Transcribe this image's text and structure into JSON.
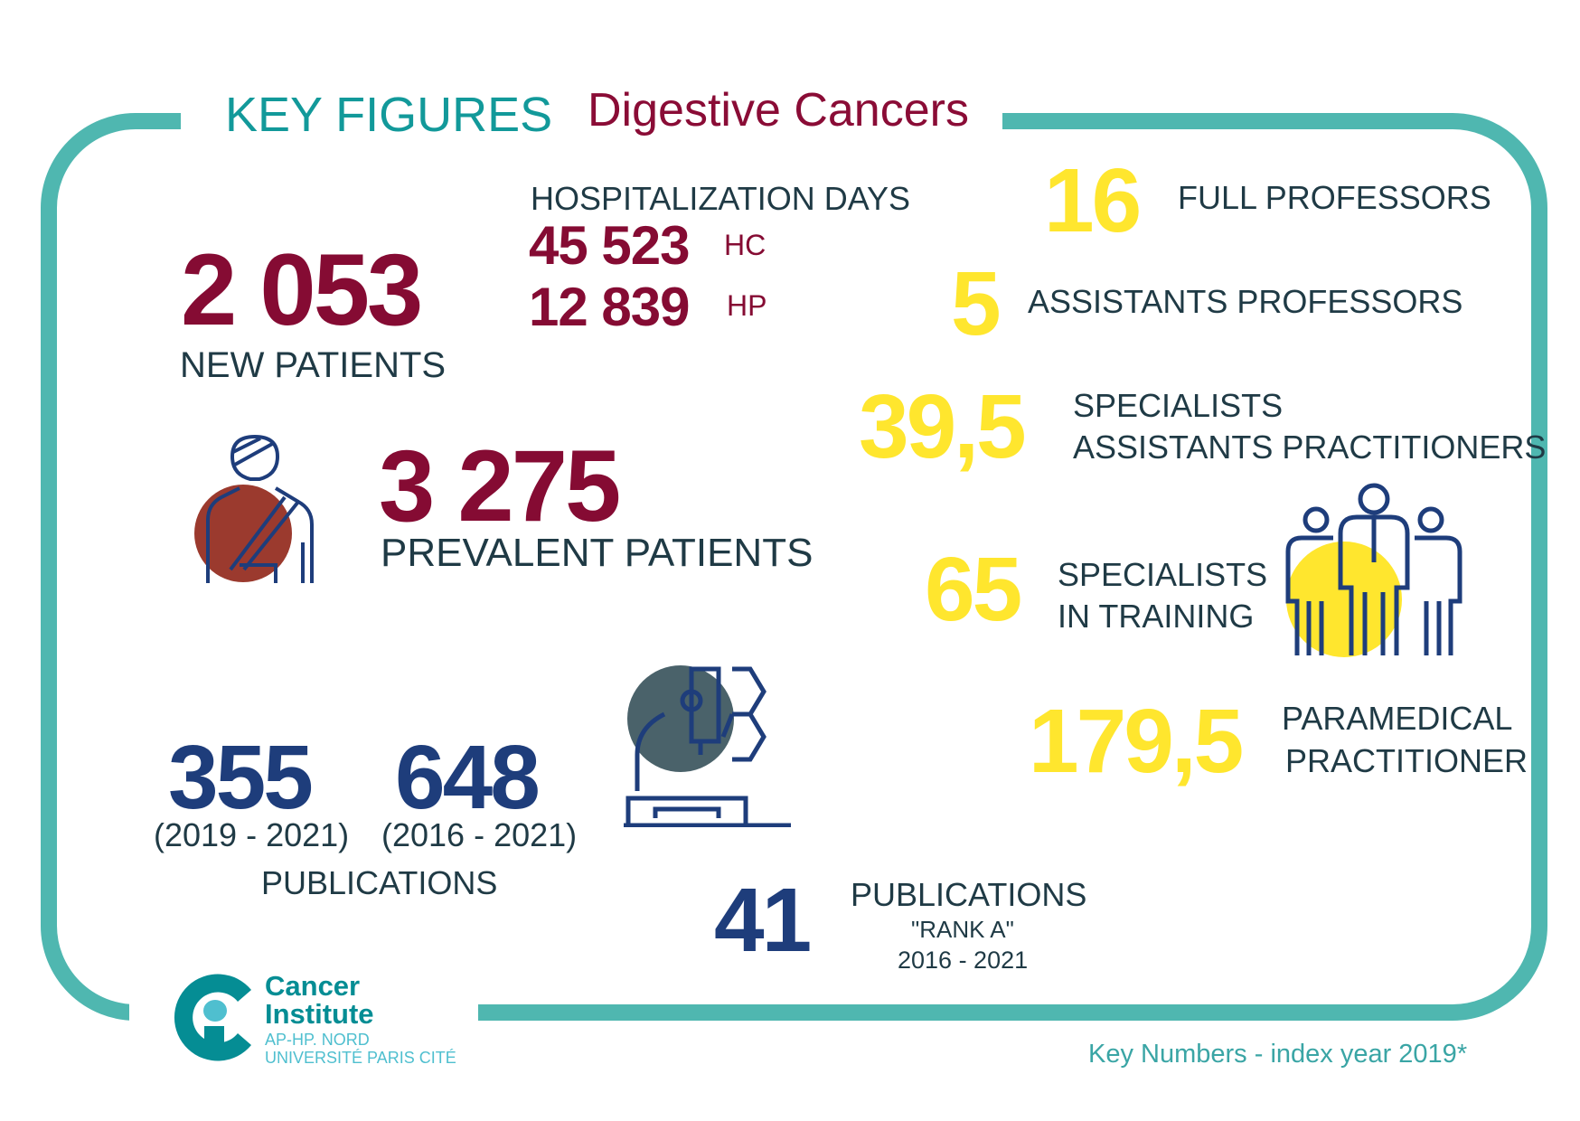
{
  "header": {
    "title": "KEY FIGURES",
    "subtitle": "Digestive Cancers"
  },
  "new_patients": {
    "value": "2 053",
    "label": "NEW PATIENTS"
  },
  "hospitalization": {
    "label": "HOSPITALIZATION DAYS",
    "hc_value": "45 523",
    "hc_label": "HC",
    "hp_value": "12 839",
    "hp_label": "HP"
  },
  "prevalent": {
    "value": "3 275",
    "label": "PREVALENT PATIENTS"
  },
  "staff": [
    {
      "value": "16",
      "label": [
        "FULL PROFESSORS"
      ]
    },
    {
      "value": "5",
      "label": [
        "ASSISTANTS PROFESSORS"
      ]
    },
    {
      "value": "39,5",
      "label": [
        "SPECIALISTS",
        "ASSISTANTS PRACTITIONERS"
      ]
    },
    {
      "value": "65",
      "label": [
        "SPECIALISTS",
        "IN TRAINING"
      ]
    },
    {
      "value": "179,5",
      "label": [
        "PARAMEDICAL",
        "PRACTITIONER"
      ]
    }
  ],
  "publications": {
    "v1": "355",
    "p1": "(2019 - 2021)",
    "v2": "648",
    "p2": "(2016 - 2021)",
    "label": "PUBLICATIONS"
  },
  "rank_a": {
    "value": "41",
    "label": "PUBLICATIONS",
    "sub": "\"RANK A\"",
    "period": "2016 - 2021"
  },
  "logo": {
    "line1": "Cancer",
    "line2": "Institute",
    "line3": "AP-HP. NORD",
    "line4": "UNIVERSITÉ PARIS CITÉ"
  },
  "footer": "Key Numbers - index year 2019*",
  "colors": {
    "teal": "#4fb7b0",
    "maroon": "#850b33",
    "yellow": "#ffe62e",
    "navy": "#1e3d7b"
  }
}
